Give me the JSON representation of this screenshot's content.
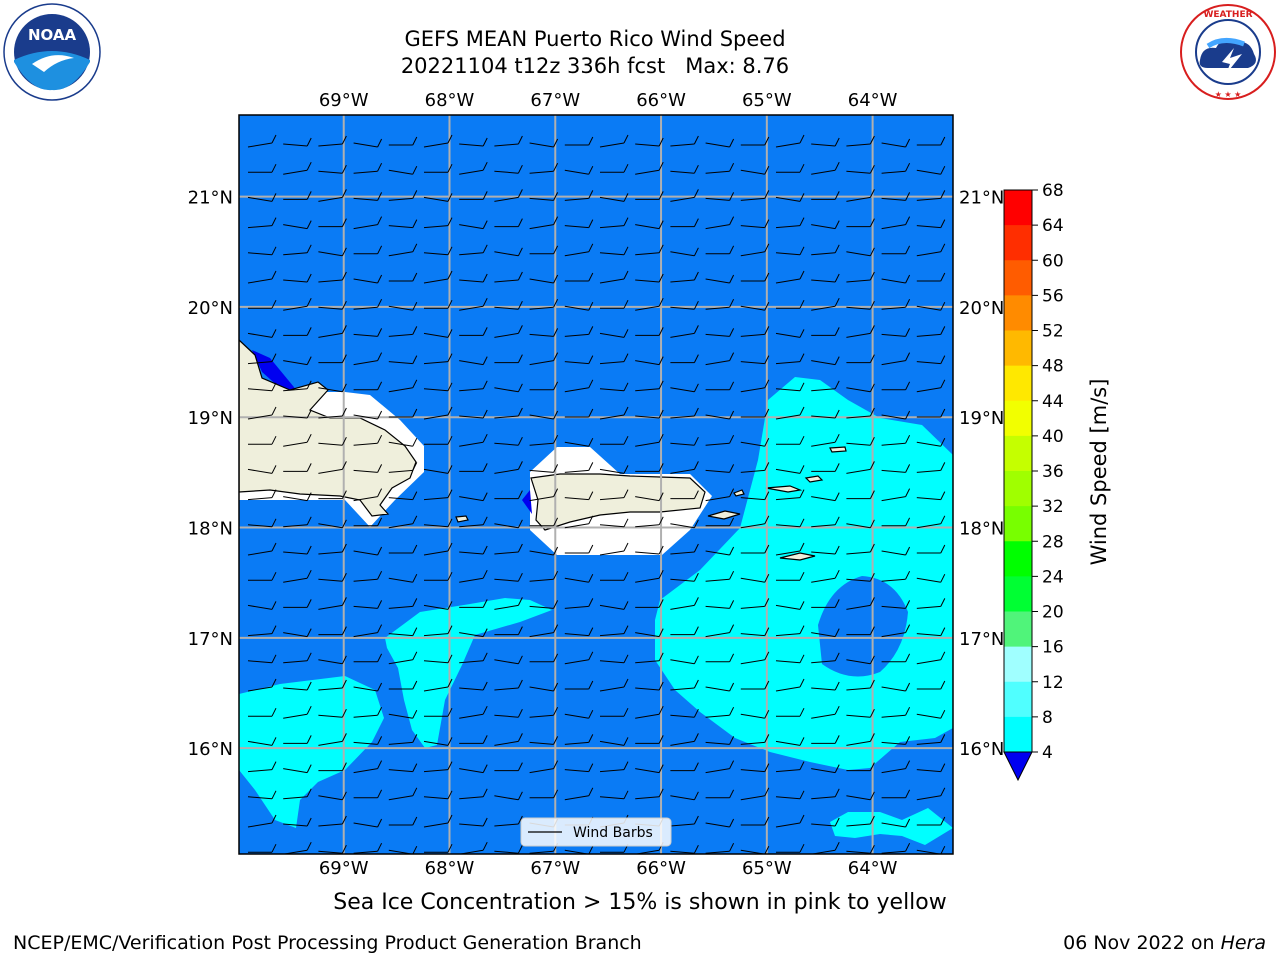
{
  "header": {
    "title_line1": "GEFS MEAN Puerto Rico Wind Speed",
    "title_line2": "20221104 t12z 336h fcst   Max: 8.76"
  },
  "logos": {
    "left": {
      "icon": "noaa-logo",
      "text": "NOAA",
      "ring_text": "NATIONAL OCEANIC AND ATMOSPHERIC ADMINISTRATION · U.S. DEPARTMENT OF COMMERCE"
    },
    "right": {
      "icon": "nws-logo",
      "ring_text": "NATIONAL WEATHER SERVICE"
    }
  },
  "map": {
    "lon_labels": [
      "69°W",
      "68°W",
      "67°W",
      "66°W",
      "65°W",
      "64°W"
    ],
    "lat_labels": [
      "21°N",
      "20°N",
      "19°N",
      "18°N",
      "17°N",
      "16°N"
    ],
    "lon_values": [
      -69,
      -68,
      -67,
      -66,
      -65,
      -64
    ],
    "lat_values": [
      21,
      20,
      19,
      18,
      17,
      16
    ],
    "lon_range": [
      -69.99,
      -63.24
    ],
    "lat_range": [
      15.04,
      21.74
    ],
    "ocean_color": "#0a7bf5",
    "land_color": "#efefdc",
    "contour_8_12_color": "#00ffff",
    "legend_label": "Wind Barbs"
  },
  "colorbar": {
    "label": "Wind Speed [m/s]",
    "ticks": [
      "68",
      "64",
      "60",
      "56",
      "52",
      "48",
      "44",
      "40",
      "36",
      "32",
      "28",
      "24",
      "20",
      "16",
      "12",
      "8",
      "4"
    ],
    "colors": [
      "#ff0000",
      "#ff2e00",
      "#ff5c00",
      "#ff8b00",
      "#ffb900",
      "#ffe800",
      "#f2ff00",
      "#c5ff00",
      "#a0ff00",
      "#78ff00",
      "#00ff00",
      "#00ff33",
      "#50f47a",
      "#a0ffff",
      "#50ffff",
      "#00ffff",
      "#0a7bf5"
    ],
    "under_color": "#0000f0"
  },
  "footer": {
    "sea_ice_note": "Sea Ice Concentration > 15% is shown in pink to yellow",
    "credit_left": "NCEP/EMC/Verification Post Processing Product Generation Branch",
    "credit_date": "06 Nov 2022 on ",
    "credit_host": "Hera"
  }
}
